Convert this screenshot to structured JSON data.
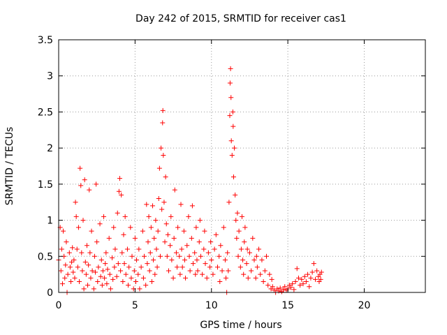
{
  "chart_data": {
    "type": "scatter",
    "title": "Day 242 of 2015, SRMTID for receiver cas1",
    "xlabel": "GPS time / hours",
    "ylabel": "SRMTID / TECUs",
    "xlim": [
      0,
      24
    ],
    "ylim": [
      0,
      3.5
    ],
    "grid": true,
    "marker": "+",
    "series_color": "#ff0000",
    "x_ticks": [
      0,
      5,
      10,
      15,
      20
    ],
    "x_tick_labels": [
      "0",
      "5",
      "10",
      "15",
      "20"
    ],
    "y_ticks": [
      0,
      0.5,
      1,
      1.5,
      2,
      2.5,
      3,
      3.5
    ],
    "y_tick_labels": [
      "0",
      "0.5",
      "1",
      "1.5",
      "2",
      "2.5",
      "3",
      "3.5"
    ],
    "points": [
      [
        0.0,
        0.45
      ],
      [
        0.1,
        0.9
      ],
      [
        0.15,
        0.3
      ],
      [
        0.2,
        0.6
      ],
      [
        0.25,
        0.12
      ],
      [
        0.3,
        0.85
      ],
      [
        0.35,
        0.5
      ],
      [
        0.4,
        0.2
      ],
      [
        0.45,
        0.38
      ],
      [
        0.5,
        0.7
      ],
      [
        0.55,
        0.0
      ],
      [
        0.6,
        0.25
      ],
      [
        0.7,
        0.55
      ],
      [
        0.75,
        0.35
      ],
      [
        0.8,
        0.15
      ],
      [
        0.85,
        0.42
      ],
      [
        0.9,
        0.62
      ],
      [
        0.95,
        0.28
      ],
      [
        1.0,
        0.45
      ],
      [
        1.05,
        0.2
      ],
      [
        1.1,
        1.25
      ],
      [
        1.15,
        1.05
      ],
      [
        1.2,
        0.6
      ],
      [
        1.25,
        0.35
      ],
      [
        1.3,
        0.9
      ],
      [
        1.35,
        0.15
      ],
      [
        1.4,
        1.72
      ],
      [
        1.45,
        1.48
      ],
      [
        1.5,
        0.55
      ],
      [
        1.55,
        0.3
      ],
      [
        1.6,
        1.0
      ],
      [
        1.65,
        0.05
      ],
      [
        1.7,
        1.56
      ],
      [
        1.75,
        0.42
      ],
      [
        1.8,
        0.25
      ],
      [
        1.85,
        0.65
      ],
      [
        1.9,
        0.1
      ],
      [
        1.95,
        0.38
      ],
      [
        2.0,
        1.42
      ],
      [
        2.05,
        0.55
      ],
      [
        2.1,
        0.2
      ],
      [
        2.15,
        0.85
      ],
      [
        2.2,
        0.3
      ],
      [
        2.3,
        0.05
      ],
      [
        2.35,
        0.5
      ],
      [
        2.4,
        0.28
      ],
      [
        2.45,
        1.5
      ],
      [
        2.5,
        0.7
      ],
      [
        2.55,
        0.15
      ],
      [
        2.6,
        0.35
      ],
      [
        2.7,
        0.95
      ],
      [
        2.75,
        0.22
      ],
      [
        2.8,
        0.45
      ],
      [
        2.85,
        0.1
      ],
      [
        2.9,
        0.3
      ],
      [
        2.95,
        1.05
      ],
      [
        3.0,
        0.2
      ],
      [
        3.05,
        0.4
      ],
      [
        3.1,
        0.55
      ],
      [
        3.15,
        0.12
      ],
      [
        3.2,
        0.32
      ],
      [
        3.3,
        0.75
      ],
      [
        3.35,
        0.25
      ],
      [
        3.4,
        0.05
      ],
      [
        3.5,
        0.48
      ],
      [
        3.55,
        0.18
      ],
      [
        3.6,
        0.9
      ],
      [
        3.65,
        0.35
      ],
      [
        3.7,
        0.6
      ],
      [
        3.8,
        0.22
      ],
      [
        3.85,
        1.1
      ],
      [
        3.9,
        0.4
      ],
      [
        3.95,
        1.4
      ],
      [
        4.0,
        1.58
      ],
      [
        4.05,
        0.3
      ],
      [
        4.1,
        1.35
      ],
      [
        4.15,
        0.55
      ],
      [
        4.2,
        0.15
      ],
      [
        4.25,
        0.8
      ],
      [
        4.3,
        0.4
      ],
      [
        4.35,
        1.05
      ],
      [
        4.4,
        0.25
      ],
      [
        4.5,
        0.6
      ],
      [
        4.55,
        0.1
      ],
      [
        4.6,
        0.35
      ],
      [
        4.7,
        0.9
      ],
      [
        4.75,
        0.2
      ],
      [
        4.8,
        0.5
      ],
      [
        4.9,
        0.05
      ],
      [
        4.95,
        0.3
      ],
      [
        5.0,
        0.75
      ],
      [
        5.05,
        0.15
      ],
      [
        5.1,
        0.45
      ],
      [
        5.2,
        0.25
      ],
      [
        5.25,
        0.6
      ],
      [
        5.3,
        0.05
      ],
      [
        5.4,
        0.35
      ],
      [
        5.5,
        0.85
      ],
      [
        5.55,
        0.2
      ],
      [
        5.6,
        0.5
      ],
      [
        5.7,
        0.1
      ],
      [
        5.75,
        1.22
      ],
      [
        5.8,
        0.4
      ],
      [
        5.85,
        0.7
      ],
      [
        5.9,
        1.05
      ],
      [
        5.95,
        0.3
      ],
      [
        6.0,
        0.55
      ],
      [
        6.05,
        0.9
      ],
      [
        6.1,
        0.15
      ],
      [
        6.15,
        1.2
      ],
      [
        6.2,
        0.45
      ],
      [
        6.25,
        0.75
      ],
      [
        6.3,
        0.25
      ],
      [
        6.35,
        1.0
      ],
      [
        6.4,
        0.6
      ],
      [
        6.45,
        0.35
      ],
      [
        6.5,
        0.85
      ],
      [
        6.55,
        1.3
      ],
      [
        6.6,
        1.72
      ],
      [
        6.65,
        0.5
      ],
      [
        6.7,
        2.0
      ],
      [
        6.75,
        1.15
      ],
      [
        6.8,
        2.35
      ],
      [
        6.82,
        2.52
      ],
      [
        6.85,
        1.9
      ],
      [
        6.9,
        1.25
      ],
      [
        6.95,
        0.7
      ],
      [
        7.0,
        1.6
      ],
      [
        7.05,
        0.95
      ],
      [
        7.1,
        0.5
      ],
      [
        7.15,
        0.8
      ],
      [
        7.2,
        0.3
      ],
      [
        7.3,
        0.65
      ],
      [
        7.35,
        1.05
      ],
      [
        7.4,
        0.45
      ],
      [
        7.5,
        0.2
      ],
      [
        7.55,
        0.75
      ],
      [
        7.6,
        1.42
      ],
      [
        7.7,
        0.55
      ],
      [
        7.75,
        0.35
      ],
      [
        7.8,
        0.9
      ],
      [
        7.9,
        0.5
      ],
      [
        7.95,
        0.25
      ],
      [
        8.0,
        1.22
      ],
      [
        8.05,
        0.6
      ],
      [
        8.1,
        0.35
      ],
      [
        8.2,
        0.85
      ],
      [
        8.25,
        0.45
      ],
      [
        8.3,
        0.2
      ],
      [
        8.4,
        0.65
      ],
      [
        8.5,
        1.05
      ],
      [
        8.55,
        0.5
      ],
      [
        8.6,
        0.3
      ],
      [
        8.7,
        0.75
      ],
      [
        8.75,
        1.2
      ],
      [
        8.8,
        0.4
      ],
      [
        8.9,
        0.55
      ],
      [
        8.95,
        0.25
      ],
      [
        9.0,
        0.9
      ],
      [
        9.05,
        0.45
      ],
      [
        9.1,
        0.3
      ],
      [
        9.2,
        0.7
      ],
      [
        9.25,
        1.0
      ],
      [
        9.3,
        0.5
      ],
      [
        9.4,
        0.25
      ],
      [
        9.5,
        0.6
      ],
      [
        9.55,
        0.85
      ],
      [
        9.6,
        0.4
      ],
      [
        9.7,
        0.2
      ],
      [
        9.8,
        0.55
      ],
      [
        9.9,
        0.35
      ],
      [
        9.95,
        0.7
      ],
      [
        10.0,
        0.45
      ],
      [
        10.1,
        0.25
      ],
      [
        10.2,
        0.6
      ],
      [
        10.3,
        0.8
      ],
      [
        10.4,
        0.35
      ],
      [
        10.5,
        0.5
      ],
      [
        10.55,
        0.15
      ],
      [
        10.6,
        0.65
      ],
      [
        10.7,
        0.3
      ],
      [
        10.8,
        0.9
      ],
      [
        10.9,
        0.45
      ],
      [
        10.95,
        0.2
      ],
      [
        11.0,
        0.0
      ],
      [
        11.05,
        0.55
      ],
      [
        11.1,
        0.3
      ],
      [
        11.15,
        1.25
      ],
      [
        11.2,
        2.45
      ],
      [
        11.22,
        2.9
      ],
      [
        11.25,
        3.1
      ],
      [
        11.28,
        2.7
      ],
      [
        11.3,
        2.1
      ],
      [
        11.35,
        1.9
      ],
      [
        11.4,
        2.5
      ],
      [
        11.42,
        2.3
      ],
      [
        11.45,
        1.6
      ],
      [
        11.5,
        2.0
      ],
      [
        11.55,
        1.35
      ],
      [
        11.6,
        1.0
      ],
      [
        11.65,
        0.75
      ],
      [
        11.7,
        1.1
      ],
      [
        11.75,
        0.5
      ],
      [
        11.8,
        0.85
      ],
      [
        11.9,
        0.35
      ],
      [
        11.95,
        0.6
      ],
      [
        12.0,
        1.05
      ],
      [
        12.05,
        0.45
      ],
      [
        12.1,
        0.25
      ],
      [
        12.15,
        0.7
      ],
      [
        12.2,
        0.9
      ],
      [
        12.3,
        0.4
      ],
      [
        12.35,
        0.6
      ],
      [
        12.4,
        0.2
      ],
      [
        12.5,
        0.55
      ],
      [
        12.6,
        0.3
      ],
      [
        12.7,
        0.75
      ],
      [
        12.8,
        0.45
      ],
      [
        12.9,
        0.2
      ],
      [
        12.95,
        0.5
      ],
      [
        13.0,
        0.35
      ],
      [
        13.1,
        0.6
      ],
      [
        13.2,
        0.25
      ],
      [
        13.3,
        0.45
      ],
      [
        13.4,
        0.15
      ],
      [
        13.5,
        0.3
      ],
      [
        13.6,
        0.5
      ],
      [
        13.7,
        0.1
      ],
      [
        13.8,
        0.25
      ],
      [
        13.9,
        0.05
      ],
      [
        13.95,
        0.18
      ],
      [
        14.0,
        0.08
      ],
      [
        14.1,
        0.03
      ],
      [
        14.2,
        0.0
      ],
      [
        14.3,
        0.05
      ],
      [
        14.4,
        0.02
      ],
      [
        14.5,
        0.06
      ],
      [
        14.6,
        0.01
      ],
      [
        14.7,
        0.04
      ],
      [
        14.8,
        0.08
      ],
      [
        14.9,
        0.03
      ],
      [
        15.0,
        0.05
      ],
      [
        15.1,
        0.1
      ],
      [
        15.2,
        0.07
      ],
      [
        15.3,
        0.12
      ],
      [
        15.4,
        0.04
      ],
      [
        15.5,
        0.15
      ],
      [
        15.6,
        0.33
      ],
      [
        15.7,
        0.2
      ],
      [
        15.8,
        0.1
      ],
      [
        15.9,
        0.18
      ],
      [
        16.0,
        0.12
      ],
      [
        16.1,
        0.22
      ],
      [
        16.2,
        0.15
      ],
      [
        16.3,
        0.25
      ],
      [
        16.4,
        0.08
      ],
      [
        16.5,
        0.2
      ],
      [
        16.6,
        0.28
      ],
      [
        16.7,
        0.4
      ],
      [
        16.8,
        0.18
      ],
      [
        16.9,
        0.3
      ],
      [
        17.0,
        0.22
      ],
      [
        17.05,
        0.15
      ],
      [
        17.1,
        0.25
      ],
      [
        17.15,
        0.18
      ],
      [
        17.2,
        0.28
      ]
    ]
  }
}
